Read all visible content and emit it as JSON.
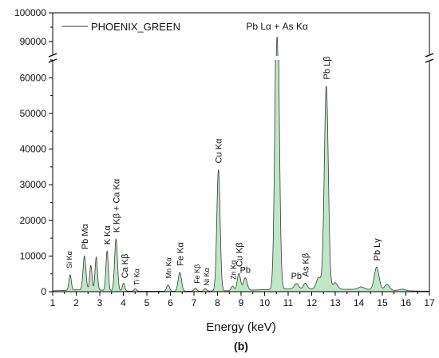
{
  "chart_data": {
    "type": "area",
    "xlabel": "Energy (keV)",
    "panel_label": "(b)",
    "xlim": [
      1,
      17
    ],
    "x_ticks": [
      "1",
      "2",
      "3",
      "4",
      "5",
      "6",
      "7",
      "8",
      "9",
      "10",
      "11",
      "12",
      "13",
      "14",
      "15",
      "16",
      "17"
    ],
    "y_axis_break": true,
    "ylim_lower": [
      0,
      65000
    ],
    "ylim_upper": [
      85000,
      100000
    ],
    "y_ticks_lower": [
      "0",
      "10000",
      "20000",
      "30000",
      "40000",
      "50000",
      "60000"
    ],
    "y_ticks_upper": [
      "90000",
      "100000"
    ],
    "legend": {
      "label": "PHOENIX_GREEN",
      "position": "top-left"
    },
    "colors": {
      "fill": "#bfe6c8",
      "line": "#3a3a3a"
    },
    "peaks": [
      {
        "label": "Si Kα",
        "energy": 1.74,
        "height": 4300,
        "width": 0.05
      },
      {
        "label": "Pb Mα",
        "energy": 2.35,
        "height": 9500,
        "width": 0.06
      },
      {
        "label": "",
        "energy": 2.62,
        "height": 6800,
        "width": 0.05
      },
      {
        "label": "",
        "energy": 2.85,
        "height": 9200,
        "width": 0.05
      },
      {
        "label": "K Kα",
        "energy": 3.31,
        "height": 11000,
        "width": 0.05
      },
      {
        "label": "K Kβ + Ca Kα",
        "energy": 3.69,
        "height": 14500,
        "width": 0.06
      },
      {
        "label": "Ca Kβ",
        "energy": 4.01,
        "height": 2200,
        "width": 0.05
      },
      {
        "label": "Ti Kα",
        "energy": 4.51,
        "height": 700,
        "width": 0.05
      },
      {
        "label": "Mn Kα",
        "energy": 5.9,
        "height": 1800,
        "width": 0.06
      },
      {
        "label": "Fe Kα",
        "energy": 6.4,
        "height": 5300,
        "width": 0.07
      },
      {
        "label": "Fe Kβ",
        "energy": 7.06,
        "height": 800,
        "width": 0.06
      },
      {
        "label": "Ni Kα",
        "energy": 7.48,
        "height": 650,
        "width": 0.06
      },
      {
        "label": "Cu Kα",
        "energy": 8.04,
        "height": 34000,
        "width": 0.07
      },
      {
        "label": "Zn Kα",
        "energy": 8.64,
        "height": 1300,
        "width": 0.06
      },
      {
        "label": "Cu Kβ",
        "energy": 8.91,
        "height": 4800,
        "width": 0.07
      },
      {
        "label": "Pb",
        "energy": 9.18,
        "height": 3500,
        "width": 0.08
      },
      {
        "label": "Pb Lα + As Kα",
        "energy": 10.53,
        "height": 91000,
        "width": 0.085
      },
      {
        "label": "Pb",
        "energy": 11.35,
        "height": 1500,
        "width": 0.09
      },
      {
        "label": "As Kβ",
        "energy": 11.73,
        "height": 1600,
        "width": 0.08
      },
      {
        "label": "",
        "energy": 12.3,
        "height": 3200,
        "width": 0.1
      },
      {
        "label": "Pb Lβ",
        "energy": 12.62,
        "height": 57000,
        "width": 0.085
      },
      {
        "label": "",
        "energy": 13.0,
        "height": 1800,
        "width": 0.1
      },
      {
        "label": "",
        "energy": 14.1,
        "height": 700,
        "width": 0.12
      },
      {
        "label": "Pb Lγ",
        "energy": 14.76,
        "height": 6300,
        "width": 0.1
      },
      {
        "label": "",
        "energy": 15.2,
        "height": 1600,
        "width": 0.1
      },
      {
        "label": "",
        "energy": 15.85,
        "height": 400,
        "width": 0.12
      }
    ]
  }
}
